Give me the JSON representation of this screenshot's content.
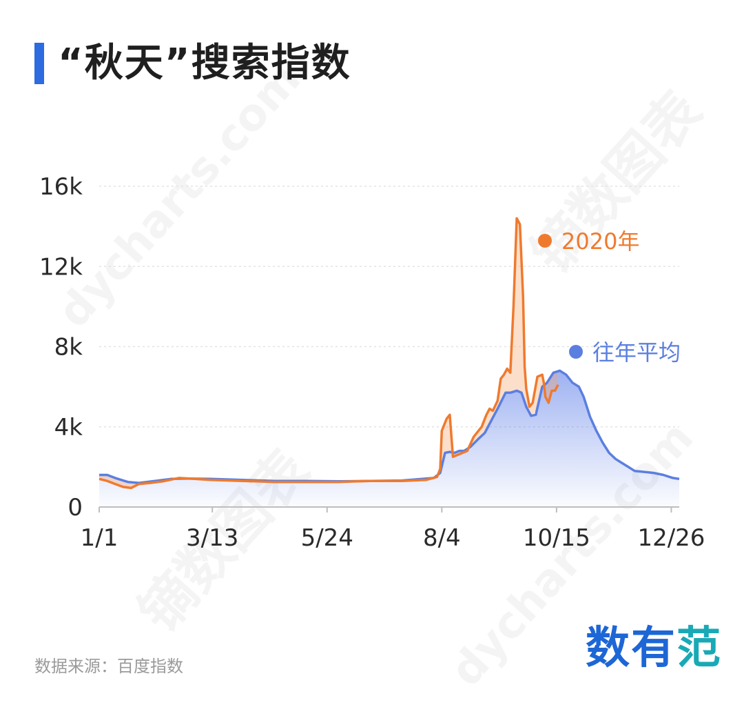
{
  "title": "“秋天”搜索指数",
  "source": "数据来源：百度指数",
  "brand": {
    "char1": "数",
    "char2": "有",
    "char3": "范"
  },
  "watermark": {
    "text_cn": "镝数图表",
    "text_en": "dycharts.com"
  },
  "colors": {
    "accent": "#2c6be0",
    "series_2020": "#ef7a2e",
    "series_avg": "#5b7fe0"
  },
  "chart_data": {
    "type": "line",
    "title": "“秋天”搜索指数",
    "xlabel": "",
    "ylabel": "",
    "x_ticks": [
      "1/1",
      "3/13",
      "5/24",
      "8/4",
      "10/15",
      "12/26"
    ],
    "x_tick_days": [
      0,
      71,
      143,
      215,
      287,
      359
    ],
    "x_range_days": [
      0,
      364
    ],
    "ylim": [
      0,
      16000
    ],
    "y_ticks": [
      0,
      4000,
      8000,
      12000,
      16000
    ],
    "y_tick_labels": [
      "0",
      "4k",
      "8k",
      "12k",
      "16k"
    ],
    "grid": true,
    "legend": "inline labels right",
    "series": [
      {
        "name": "往年平均",
        "color": "#5b7fe0",
        "fill": "gradient",
        "points": [
          [
            0,
            1600
          ],
          [
            5,
            1600
          ],
          [
            10,
            1450
          ],
          [
            18,
            1250
          ],
          [
            25,
            1200
          ],
          [
            35,
            1300
          ],
          [
            45,
            1400
          ],
          [
            55,
            1420
          ],
          [
            70,
            1400
          ],
          [
            90,
            1350
          ],
          [
            110,
            1300
          ],
          [
            130,
            1300
          ],
          [
            150,
            1280
          ],
          [
            170,
            1300
          ],
          [
            190,
            1320
          ],
          [
            210,
            1450
          ],
          [
            214,
            1700
          ],
          [
            217,
            2700
          ],
          [
            220,
            2750
          ],
          [
            223,
            2700
          ],
          [
            226,
            2800
          ],
          [
            229,
            2800
          ],
          [
            233,
            3000
          ],
          [
            238,
            3400
          ],
          [
            242,
            3700
          ],
          [
            246,
            4300
          ],
          [
            250,
            4900
          ],
          [
            255,
            5700
          ],
          [
            258,
            5700
          ],
          [
            262,
            5800
          ],
          [
            265,
            5700
          ],
          [
            268,
            5000
          ],
          [
            271,
            4550
          ],
          [
            274,
            4600
          ],
          [
            278,
            6000
          ],
          [
            281,
            6200
          ],
          [
            285,
            6700
          ],
          [
            289,
            6800
          ],
          [
            293,
            6600
          ],
          [
            297,
            6200
          ],
          [
            301,
            6000
          ],
          [
            304,
            5500
          ],
          [
            308,
            4500
          ],
          [
            312,
            3800
          ],
          [
            316,
            3200
          ],
          [
            320,
            2700
          ],
          [
            324,
            2400
          ],
          [
            328,
            2200
          ],
          [
            332,
            2000
          ],
          [
            336,
            1800
          ],
          [
            342,
            1750
          ],
          [
            348,
            1700
          ],
          [
            354,
            1600
          ],
          [
            360,
            1450
          ],
          [
            364,
            1400
          ]
        ]
      },
      {
        "name": "2020年",
        "color": "#ef7a2e",
        "fill": "between",
        "points": [
          [
            0,
            1400
          ],
          [
            5,
            1300
          ],
          [
            10,
            1150
          ],
          [
            15,
            1000
          ],
          [
            20,
            950
          ],
          [
            25,
            1150
          ],
          [
            32,
            1200
          ],
          [
            40,
            1280
          ],
          [
            50,
            1450
          ],
          [
            60,
            1400
          ],
          [
            70,
            1350
          ],
          [
            90,
            1300
          ],
          [
            110,
            1250
          ],
          [
            130,
            1250
          ],
          [
            150,
            1250
          ],
          [
            170,
            1300
          ],
          [
            190,
            1300
          ],
          [
            205,
            1350
          ],
          [
            212,
            1500
          ],
          [
            214,
            1900
          ],
          [
            215,
            3800
          ],
          [
            218,
            4400
          ],
          [
            220,
            4600
          ],
          [
            222,
            2500
          ],
          [
            225,
            2600
          ],
          [
            228,
            2700
          ],
          [
            231,
            2800
          ],
          [
            235,
            3500
          ],
          [
            238,
            3800
          ],
          [
            240,
            4000
          ],
          [
            243,
            4600
          ],
          [
            245,
            4900
          ],
          [
            247,
            4800
          ],
          [
            250,
            5300
          ],
          [
            252,
            6400
          ],
          [
            254,
            6600
          ],
          [
            256,
            6900
          ],
          [
            258,
            6700
          ],
          [
            260,
            10000
          ],
          [
            262,
            14400
          ],
          [
            264,
            14100
          ],
          [
            266,
            10500
          ],
          [
            267,
            7000
          ],
          [
            268,
            5900
          ],
          [
            270,
            5000
          ],
          [
            272,
            5200
          ],
          [
            275,
            6500
          ],
          [
            278,
            6600
          ],
          [
            279,
            6200
          ],
          [
            280,
            5500
          ],
          [
            282,
            5200
          ],
          [
            284,
            5800
          ],
          [
            286,
            5800
          ],
          [
            288,
            6100
          ]
        ]
      }
    ],
    "labels": [
      {
        "text": "2020年",
        "series": "2020年"
      },
      {
        "text": "往年平均",
        "series": "往年平均"
      }
    ]
  }
}
